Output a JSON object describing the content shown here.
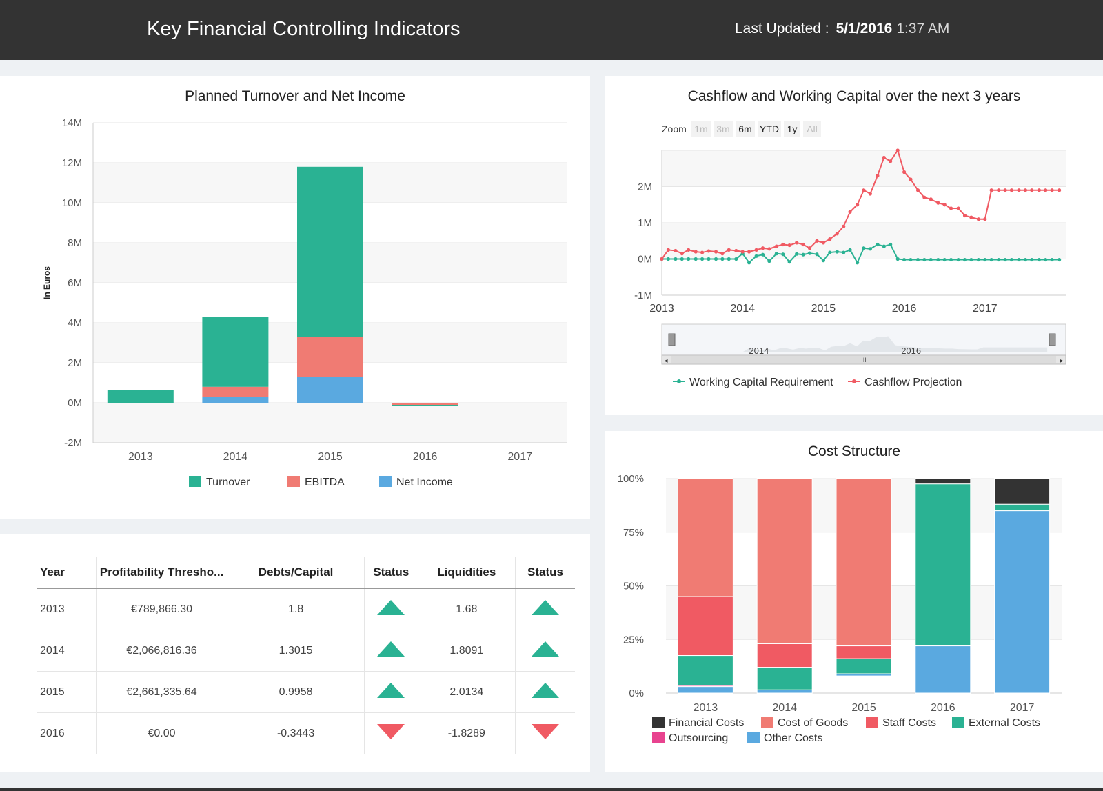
{
  "header": {
    "title": "Key Financial Controlling Indicators",
    "updated_label": "Last Updated :",
    "updated_date": "5/1/2016",
    "updated_time": "1:37 AM"
  },
  "colors": {
    "turnover": "#2ab293",
    "ebitda": "#f07b73",
    "net_income": "#5aa9e0",
    "working_capital": "#2ab293",
    "cashflow": "#f05a63",
    "financial_costs": "#333333",
    "cost_of_goods": "#f07b73",
    "staff_costs": "#f05a63",
    "external_costs": "#2ab293",
    "outsourcing": "#e8438f",
    "other_costs": "#5aa9e0",
    "status_up": "#2ab293",
    "status_down": "#f05a63"
  },
  "chart_data": [
    {
      "id": "turnover",
      "type": "bar",
      "stacked": true,
      "title": "Planned Turnover and Net Income",
      "ylabel": "In Euros",
      "ylim": [
        -2000000,
        14000000
      ],
      "y_ticks": [
        "-2M",
        "0M",
        "2M",
        "4M",
        "6M",
        "8M",
        "10M",
        "12M",
        "14M"
      ],
      "categories": [
        "2013",
        "2014",
        "2015",
        "2016",
        "2017"
      ],
      "series": [
        {
          "name": "Turnover",
          "values": [
            650000,
            3500000,
            8500000,
            -20000,
            0
          ]
        },
        {
          "name": "EBITDA",
          "values": [
            0,
            500000,
            2000000,
            -120000,
            0
          ]
        },
        {
          "name": "Net Income",
          "values": [
            0,
            300000,
            1300000,
            0,
            0
          ]
        }
      ],
      "legend": "bottom-center"
    },
    {
      "id": "cashflow",
      "type": "line",
      "title": "Cashflow and Working Capital over the next 3 years",
      "ylim": [
        -1000000,
        3000000
      ],
      "y_ticks": [
        "-1M",
        "0M",
        "1M",
        "2M"
      ],
      "x_ticks": [
        "2013",
        "2014",
        "2015",
        "2016",
        "2017"
      ],
      "xlim": [
        2013.0,
        2018.0
      ],
      "zoom_label": "Zoom",
      "zoom_buttons": [
        "1m",
        "3m",
        "6m",
        "YTD",
        "1y",
        "All"
      ],
      "navigator_labels": [
        "2014",
        "2016"
      ],
      "series": [
        {
          "name": "Working Capital Requirement",
          "x": [
            2013.0,
            2013.08,
            2013.17,
            2013.25,
            2013.33,
            2013.42,
            2013.5,
            2013.58,
            2013.67,
            2013.75,
            2013.83,
            2013.92,
            2014.0,
            2014.08,
            2014.17,
            2014.25,
            2014.33,
            2014.42,
            2014.5,
            2014.58,
            2014.67,
            2014.75,
            2014.83,
            2014.92,
            2015.0,
            2015.08,
            2015.17,
            2015.25,
            2015.33,
            2015.42,
            2015.5,
            2015.58,
            2015.67,
            2015.75,
            2015.83,
            2015.92,
            2016.0,
            2016.08,
            2016.17,
            2016.25,
            2016.33,
            2016.42,
            2016.5,
            2016.58,
            2016.67,
            2016.75,
            2016.83,
            2016.92,
            2017.0,
            2017.08,
            2017.17,
            2017.25,
            2017.33,
            2017.42,
            2017.5,
            2017.58,
            2017.67,
            2017.75,
            2017.83,
            2017.92
          ],
          "values": [
            0,
            0,
            0,
            0,
            0,
            0,
            0,
            0,
            0,
            0,
            0,
            0,
            150000,
            -100000,
            80000,
            120000,
            -60000,
            150000,
            130000,
            -80000,
            140000,
            120000,
            160000,
            130000,
            -40000,
            180000,
            200000,
            180000,
            250000,
            -100000,
            300000,
            280000,
            400000,
            350000,
            400000,
            0,
            -20000,
            -20000,
            -20000,
            -20000,
            -20000,
            -20000,
            -20000,
            -20000,
            -20000,
            -20000,
            -20000,
            -20000,
            -20000,
            -20000,
            -20000,
            -20000,
            -20000,
            -20000,
            -20000,
            -20000,
            -20000,
            -20000,
            -20000,
            -20000
          ]
        },
        {
          "name": "Cashflow Projection",
          "x": [
            2013.0,
            2013.08,
            2013.17,
            2013.25,
            2013.33,
            2013.42,
            2013.5,
            2013.58,
            2013.67,
            2013.75,
            2013.83,
            2013.92,
            2014.0,
            2014.08,
            2014.17,
            2014.25,
            2014.33,
            2014.42,
            2014.5,
            2014.58,
            2014.67,
            2014.75,
            2014.83,
            2014.92,
            2015.0,
            2015.08,
            2015.17,
            2015.25,
            2015.33,
            2015.42,
            2015.5,
            2015.58,
            2015.67,
            2015.75,
            2015.83,
            2015.92,
            2016.0,
            2016.08,
            2016.17,
            2016.25,
            2016.33,
            2016.42,
            2016.5,
            2016.58,
            2016.67,
            2016.75,
            2016.83,
            2016.92,
            2017.0,
            2017.08,
            2017.17,
            2017.25,
            2017.33,
            2017.42,
            2017.5,
            2017.58,
            2017.67,
            2017.75,
            2017.83,
            2017.92
          ],
          "values": [
            0,
            250000,
            230000,
            150000,
            250000,
            200000,
            180000,
            220000,
            200000,
            150000,
            250000,
            230000,
            200000,
            200000,
            250000,
            300000,
            280000,
            350000,
            400000,
            380000,
            450000,
            400000,
            300000,
            500000,
            450000,
            550000,
            700000,
            900000,
            1300000,
            1500000,
            1900000,
            1800000,
            2300000,
            2800000,
            2700000,
            3000000,
            2400000,
            2200000,
            1900000,
            1700000,
            1650000,
            1550000,
            1500000,
            1400000,
            1400000,
            1200000,
            1150000,
            1100000,
            1100000,
            1900000,
            1900000,
            1900000,
            1900000,
            1900000,
            1900000,
            1900000,
            1900000,
            1900000,
            1900000,
            1900000
          ]
        }
      ],
      "legend": "bottom-center"
    },
    {
      "id": "cost",
      "type": "bar",
      "stacked": true,
      "percent": true,
      "title": "Cost Structure",
      "ylim": [
        0,
        100
      ],
      "y_ticks": [
        "0%",
        "25%",
        "50%",
        "75%",
        "100%"
      ],
      "categories": [
        "2013",
        "2014",
        "2015",
        "2016",
        "2017"
      ],
      "series": [
        {
          "name": "Financial Costs",
          "values": [
            0,
            0,
            0,
            2.5,
            12
          ]
        },
        {
          "name": "Cost of Goods",
          "values": [
            55,
            77,
            78,
            0,
            0
          ]
        },
        {
          "name": "Staff Costs",
          "values": [
            27.5,
            11,
            6,
            0,
            0
          ]
        },
        {
          "name": "External Costs",
          "values": [
            14,
            10.5,
            7,
            75.5,
            3
          ]
        },
        {
          "name": "Outsourcing",
          "values": [
            0.5,
            0,
            0,
            0,
            0
          ]
        },
        {
          "name": "Other Costs",
          "values": [
            3,
            1.5,
            1,
            22,
            85
          ]
        }
      ],
      "legend": "bottom-center"
    }
  ],
  "table": {
    "headers": [
      "Year",
      "Profitability Thresho...",
      "Debts/Capital",
      "Status",
      "Liquidities",
      "Status"
    ],
    "rows": [
      {
        "year": "2013",
        "threshold": "€789,866.30",
        "debts": "1.8",
        "debts_status": "up",
        "liquidities": "1.68",
        "liq_status": "up"
      },
      {
        "year": "2014",
        "threshold": "€2,066,816.36",
        "debts": "1.3015",
        "debts_status": "up",
        "liquidities": "1.8091",
        "liq_status": "up"
      },
      {
        "year": "2015",
        "threshold": "€2,661,335.64",
        "debts": "0.9958",
        "debts_status": "up",
        "liquidities": "2.0134",
        "liq_status": "up"
      },
      {
        "year": "2016",
        "threshold": "€0.00",
        "debts": "-0.3443",
        "debts_status": "down",
        "liquidities": "-1.8289",
        "liq_status": "down"
      }
    ]
  }
}
